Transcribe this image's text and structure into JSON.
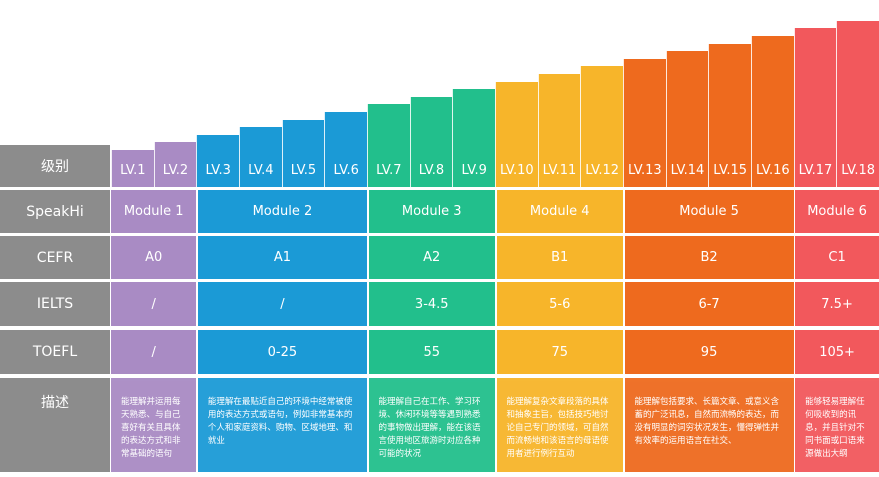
{
  "row_headers": [
    "级别",
    "SpeakHi",
    "CEFR",
    "IELTS",
    "TOEFL",
    "描述"
  ],
  "levels": [
    "LV.1",
    "LV.2",
    "LV.3",
    "LV.4",
    "LV.5",
    "LV.6",
    "LV.7",
    "LV.8",
    "LV.9",
    "LV.10",
    "LV.11",
    "LV.12",
    "LV.13",
    "LV.14",
    "LV.15",
    "LV.16",
    "LV.17",
    "LV.18"
  ],
  "groups": [
    {
      "module": "Module 1",
      "cefr": "A0",
      "ielts": "/",
      "toefl": "/",
      "color": "#a98bc4",
      "span": 2,
      "desc": "能理解并运用每天熟悉、与自己喜好有关且具体的表达方式和非常基础的语句"
    },
    {
      "module": "Module 2",
      "cefr": "A1",
      "ielts": "/",
      "toefl": "0-25",
      "color": "#1b9ad6",
      "span": 4,
      "desc": "能理解在最贴近自己的环境中经常被使用的表达方式或语句，例如非常基本的个人和家庭资料、购物、区域地理、和就业"
    },
    {
      "module": "Module 3",
      "cefr": "A2",
      "ielts": "3-4.5",
      "toefl": "55",
      "color": "#22bf8c",
      "span": 3,
      "desc": "能理解自己在工作、学习环境、休闲环境等等遇到熟悉的事物做出理解，能在该语言使用地区旅游时对应各种可能的状况"
    },
    {
      "module": "Module 4",
      "cefr": "B1",
      "ielts": "5-6",
      "toefl": "75",
      "color": "#f7b52a",
      "span": 3,
      "desc": "能理解复杂文章段落的具体和抽象主旨，包括技巧地讨论自己专门的领域，可自然而流畅地和该语言的母语使用者进行例行互动"
    },
    {
      "module": "Module 5",
      "cefr": "B2",
      "ielts": "6-7",
      "toefl": "95",
      "color": "#ee6a1e",
      "span": 4,
      "desc": "能理解包括要求、长篇文章、或意义含蓄的广泛讯息，自然而流畅的表达，而没有明显的词穷状况发生，懂得弹性并有效率的运用语言在社交、"
    },
    {
      "module": "Module 6",
      "cefr": "C1",
      "ielts": "7.5+",
      "toefl": "105+",
      "color": "#f2585c",
      "span": 2,
      "desc": "能够轻易理解任何吸收到的讯息，并且针对不同书面或口语来源做出大纲"
    }
  ]
}
